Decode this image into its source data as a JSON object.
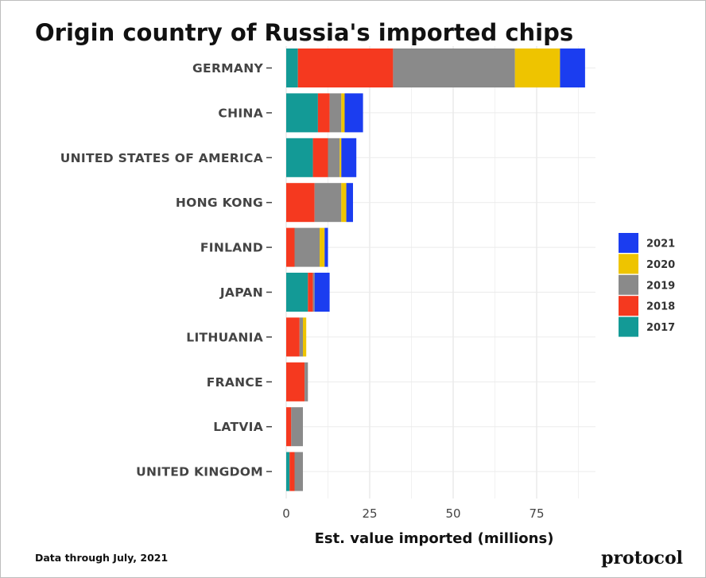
{
  "chart_data": {
    "type": "bar",
    "orientation": "horizontal",
    "stacked": true,
    "title": "Origin country of Russia's imported chips",
    "xlabel": "Est. value imported (millions)",
    "ylabel": "",
    "xlim": [
      0,
      95
    ],
    "xticks": [
      0,
      25,
      50,
      75
    ],
    "grid": true,
    "legend_position": "right",
    "categories": [
      "GERMANY",
      "CHINA",
      "UNITED STATES OF AMERICA",
      "HONG KONG",
      "FINLAND",
      "JAPAN",
      "LITHUANIA",
      "FRANCE",
      "LATVIA",
      "UNITED KINGDOM"
    ],
    "series": [
      {
        "name": "2017",
        "color": "#139a96",
        "values": [
          3.5,
          9.5,
          8.0,
          0.0,
          0.0,
          6.5,
          0.0,
          0.0,
          0.0,
          1.0
        ]
      },
      {
        "name": "2018",
        "color": "#f5391f",
        "values": [
          28.5,
          3.5,
          4.5,
          8.5,
          2.5,
          1.5,
          4.0,
          5.5,
          1.5,
          1.5
        ]
      },
      {
        "name": "2019",
        "color": "#8a8a8a",
        "values": [
          36.5,
          3.5,
          3.5,
          8.0,
          7.5,
          0.5,
          1.0,
          1.0,
          3.5,
          2.5
        ]
      },
      {
        "name": "2020",
        "color": "#eec400",
        "values": [
          13.5,
          1.0,
          0.5,
          1.5,
          1.5,
          0.0,
          1.0,
          0.0,
          0.0,
          0.0
        ]
      },
      {
        "name": "2021",
        "color": "#1b3df0",
        "values": [
          7.5,
          5.5,
          4.5,
          2.0,
          1.0,
          4.5,
          0.0,
          0.0,
          0.0,
          0.0
        ]
      }
    ],
    "legend_order": [
      "2021",
      "2020",
      "2019",
      "2018",
      "2017"
    ]
  },
  "footnote": "Data through July, 2021",
  "brand": "protocol"
}
